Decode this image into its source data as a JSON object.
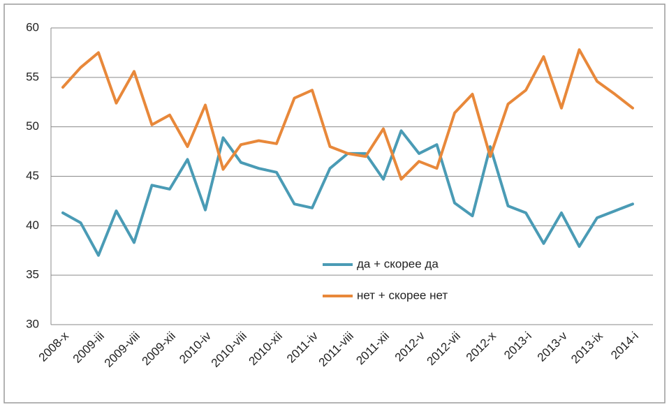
{
  "chart_data": {
    "type": "line",
    "categories": [
      "2008-x",
      null,
      "2009-iii",
      null,
      "2009-viii",
      null,
      "2009-xii",
      null,
      "2010-iv",
      null,
      "2010-viii",
      null,
      "2010-xii",
      null,
      "2011-iv",
      null,
      "2011-viii",
      null,
      "2011-xii",
      null,
      "2012-v",
      null,
      "2012-vii",
      null,
      "2012-x",
      null,
      "2013-i",
      null,
      "2013-v",
      null,
      "2013-ix",
      null,
      "2014-i"
    ],
    "series": [
      {
        "name": "да + скорее да",
        "color": "#4a9bb5",
        "values": [
          41.3,
          40.3,
          37.0,
          41.5,
          38.3,
          44.1,
          43.7,
          46.7,
          41.6,
          48.9,
          46.4,
          45.8,
          45.4,
          42.2,
          41.8,
          45.8,
          47.3,
          47.3,
          44.7,
          49.6,
          47.3,
          48.2,
          42.3,
          41.0,
          48.0,
          42.0,
          41.3,
          38.2,
          41.3,
          37.9,
          40.8,
          41.5,
          42.2
        ]
      },
      {
        "name": "нет + скорее нет",
        "color": "#e8883a",
        "values": [
          54.0,
          56.0,
          57.5,
          52.4,
          55.6,
          50.2,
          51.2,
          48.0,
          52.2,
          45.7,
          48.2,
          48.6,
          48.3,
          52.9,
          53.7,
          48.0,
          47.3,
          47.0,
          49.8,
          44.7,
          46.5,
          45.8,
          51.4,
          53.3,
          47.0,
          52.3,
          53.7,
          57.1,
          51.9,
          57.8,
          54.6,
          53.3,
          51.9
        ]
      }
    ],
    "ylim": [
      30,
      60
    ],
    "yticks": [
      30,
      35,
      40,
      45,
      50,
      55,
      60
    ],
    "grid": true,
    "legend": "inside"
  }
}
